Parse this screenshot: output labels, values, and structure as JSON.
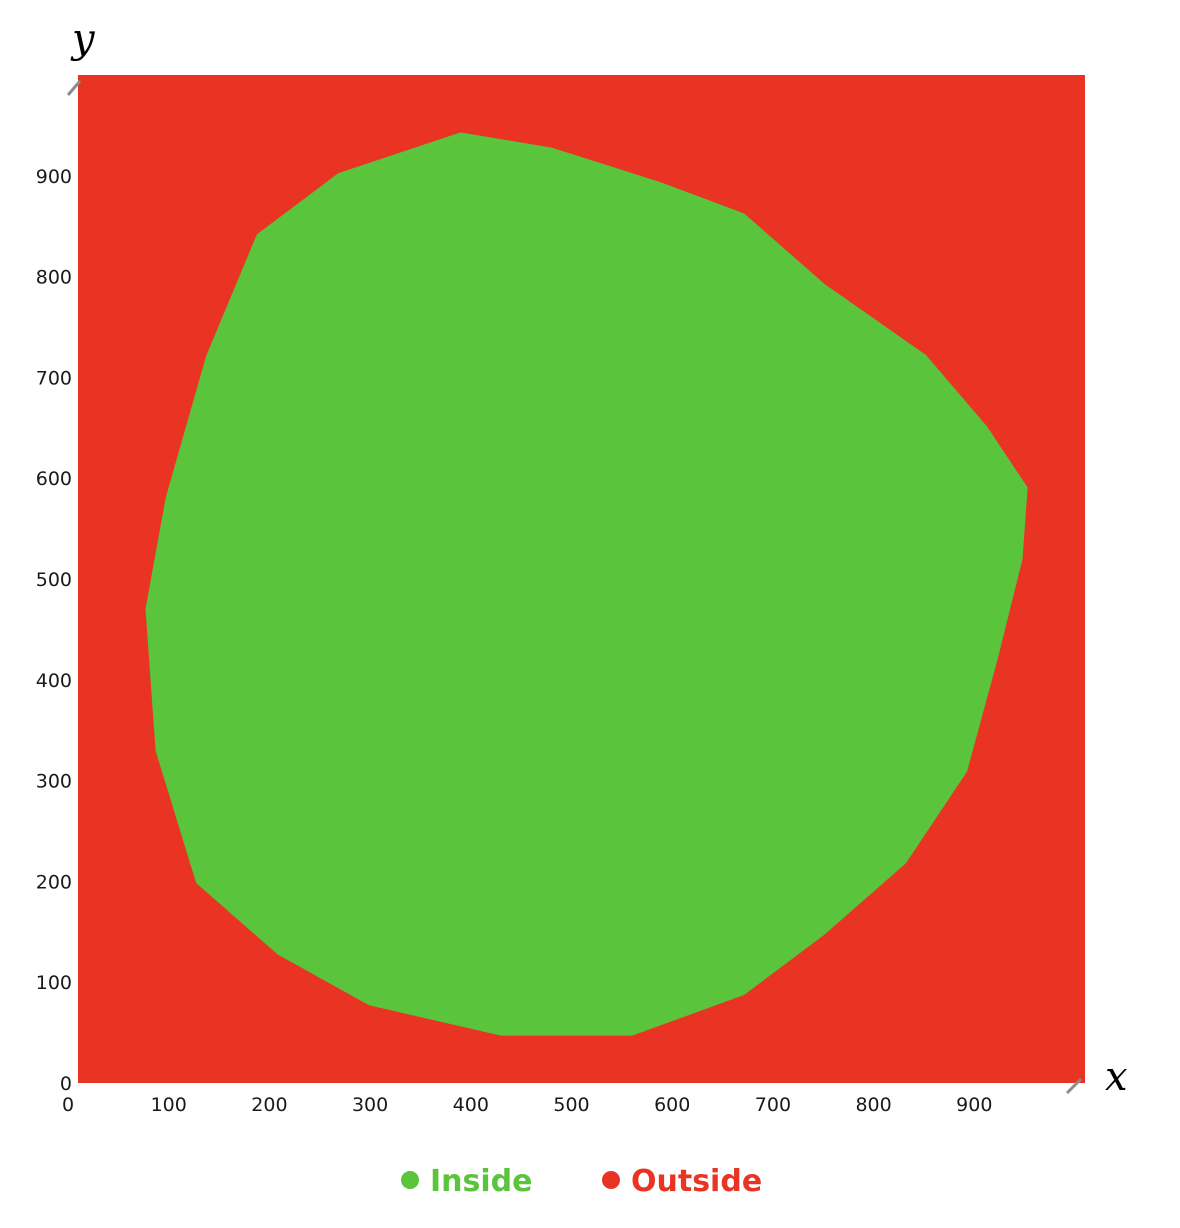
{
  "chart_data": {
    "type": "scatter",
    "title": "",
    "xlabel": "x",
    "ylabel": "y",
    "xlim": [
      0,
      1000
    ],
    "ylim": [
      0,
      1000
    ],
    "x_ticks": [
      0,
      100,
      200,
      300,
      400,
      500,
      600,
      700,
      800,
      900
    ],
    "y_ticks": [
      0,
      100,
      200,
      300,
      400,
      500,
      600,
      700,
      800,
      900
    ],
    "grid": false,
    "legend_position": "bottom-center",
    "series": [
      {
        "name": "Inside",
        "color": "#5ac43c",
        "region_boundary": [
          [
            380,
            940
          ],
          [
            470,
            925
          ],
          [
            580,
            890
          ],
          [
            660,
            860
          ],
          [
            740,
            790
          ],
          [
            840,
            720
          ],
          [
            900,
            650
          ],
          [
            940,
            590
          ],
          [
            935,
            520
          ],
          [
            910,
            420
          ],
          [
            880,
            310
          ],
          [
            820,
            220
          ],
          [
            740,
            150
          ],
          [
            660,
            90
          ],
          [
            550,
            50
          ],
          [
            420,
            50
          ],
          [
            290,
            80
          ],
          [
            200,
            130
          ],
          [
            120,
            200
          ],
          [
            80,
            330
          ],
          [
            70,
            470
          ],
          [
            90,
            580
          ],
          [
            130,
            720
          ],
          [
            180,
            840
          ],
          [
            260,
            900
          ]
        ]
      },
      {
        "name": "Outside",
        "color": "#e93323",
        "region": [
          [
            0,
            0
          ],
          [
            1000,
            1000
          ]
        ]
      }
    ]
  }
}
